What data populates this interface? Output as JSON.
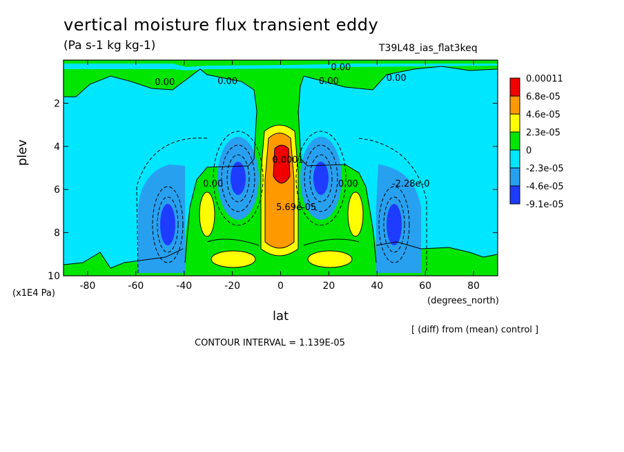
{
  "header": {
    "title": "vertical moisture flux transient eddy",
    "units": "(Pa s-1 kg kg-1)",
    "run_name": "T39L48_ias_flat3keq"
  },
  "footer": {
    "diff_note": "[ (diff) from (mean) control ]",
    "contour_interval": "CONTOUR INTERVAL = 1.139E-05"
  },
  "chart_data": {
    "type": "heatmap",
    "subtype": "filled-contour",
    "xlabel": "lat",
    "ylabel": "plev",
    "x_unit": "(degrees_north)",
    "y_unit": "(x1E4 Pa)",
    "xlim": [
      -90,
      90
    ],
    "ylim": [
      0,
      10
    ],
    "y_inverted": true,
    "x_ticks": [
      -80,
      -60,
      -40,
      -20,
      0,
      20,
      40,
      60,
      80
    ],
    "y_ticks": [
      2,
      4,
      6,
      8,
      10
    ],
    "legend": {
      "placement": "right",
      "labels": [
        "0.00011",
        "6.8e-05",
        "4.6e-05",
        "2.3e-05",
        "0",
        "-2.3e-05",
        "-4.6e-05",
        "-9.1e-05"
      ],
      "colors": [
        "#f00000",
        "#ff9900",
        "#ffff00",
        "#00e600",
        "#00e6ff",
        "#28a0f0",
        "#1e3cff"
      ]
    },
    "contour_labels": [
      {
        "text": "0.00",
        "lat": -48,
        "plev": 1.0
      },
      {
        "text": "0.00",
        "lat": -22,
        "plev": 0.95
      },
      {
        "text": "0.00",
        "lat": 25,
        "plev": 0.3
      },
      {
        "text": "0.00",
        "lat": 20,
        "plev": 0.95
      },
      {
        "text": "0.00",
        "lat": 48,
        "plev": 0.8
      },
      {
        "text": "0.00",
        "lat": -28,
        "plev": 5.7
      },
      {
        "text": "0.00",
        "lat": 28,
        "plev": 5.7
      },
      {
        "text": "-2.28e-0",
        "lat": 54,
        "plev": 5.7
      },
      {
        "text": "0.0001",
        "lat": 3,
        "plev": 4.6
      },
      {
        "text": "5.69e-05",
        "lat": 6.5,
        "plev": 6.8
      }
    ],
    "regions": {
      "positive": [
        {
          "name": "equatorial-updraft",
          "lat": 0,
          "plev": 5.5,
          "level": 2.3e-05
        },
        {
          "name": "equatorial-core",
          "lat": 0,
          "plev": 6.5,
          "level": 4.6e-05
        },
        {
          "name": "equatorial-max",
          "lat": 0,
          "plev": 5.0,
          "level": 0.00011
        },
        {
          "name": "sh-subtropic",
          "lat": -30,
          "plev": 7.0,
          "level": 2.3e-05
        },
        {
          "name": "nh-subtropic",
          "lat": 30,
          "plev": 7.0,
          "level": 2.3e-05
        },
        {
          "name": "sh-lower",
          "lat": -18,
          "plev": 9.1,
          "level": 2.3e-05
        },
        {
          "name": "nh-lower",
          "lat": 20,
          "plev": 9.1,
          "level": 2.3e-05
        }
      ],
      "negative": [
        {
          "name": "sh-inner-min",
          "lat": -17,
          "plev": 5.9,
          "level": -9.1e-05
        },
        {
          "name": "nh-inner-min",
          "lat": 17,
          "plev": 5.9,
          "level": -9.1e-05
        },
        {
          "name": "sh-outer-min",
          "lat": -46,
          "plev": 7.3,
          "level": -9.1e-05
        },
        {
          "name": "nh-outer-min",
          "lat": 46,
          "plev": 7.3,
          "level": -9.1e-05
        }
      ]
    }
  }
}
